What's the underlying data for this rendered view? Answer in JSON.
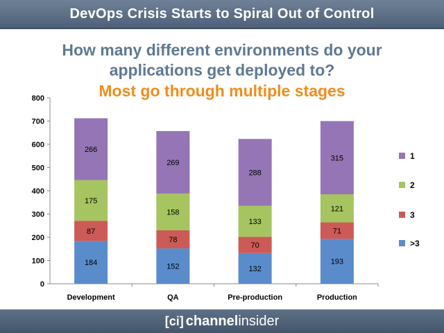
{
  "header": {
    "title": "DevOps Crisis Starts to Spiral Out of Control"
  },
  "question_line1": "How many different environments do your",
  "question_line2": "applications get deployed to?",
  "subhead": "Most go through multiple stages",
  "footer": {
    "logo_bracket": "[ci]",
    "logo_bold": "channel",
    "logo_light": "insider"
  },
  "chart_data": {
    "type": "bar",
    "stacked": true,
    "categories": [
      "Development",
      "QA",
      "Pre-production",
      "Production"
    ],
    "series": [
      {
        "name": ">3",
        "values": [
          184,
          152,
          132,
          193
        ],
        "color": "#5a8ccb"
      },
      {
        "name": "3",
        "values": [
          87,
          78,
          70,
          71
        ],
        "color": "#cc5a56"
      },
      {
        "name": "2",
        "values": [
          175,
          158,
          133,
          121
        ],
        "color": "#a6c45f"
      },
      {
        "name": "1",
        "values": [
          266,
          269,
          288,
          315
        ],
        "color": "#9575b5"
      }
    ],
    "ylim": [
      0,
      800
    ],
    "yticks": [
      0,
      100,
      200,
      300,
      400,
      500,
      600,
      700,
      800
    ],
    "legend_position": "right",
    "legend_order": [
      "1",
      "2",
      "3",
      ">3"
    ],
    "grid": false
  }
}
